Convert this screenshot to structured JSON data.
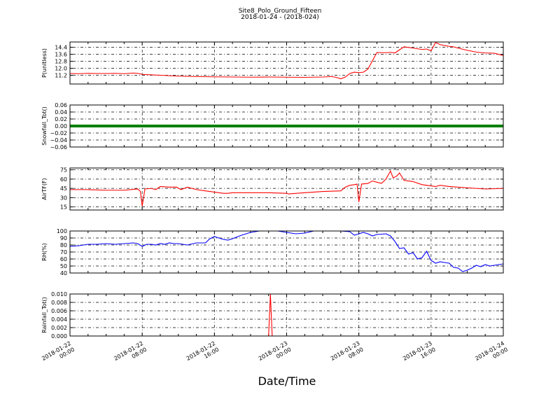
{
  "title_line1": "Site8_Polo_Ground_Fifteen",
  "title_line2": "2018-01-24 - (2018-024)",
  "xlabel": "Date/Time",
  "x_tick_labels": [
    [
      "2018-01-22",
      "00:00"
    ],
    [
      "2018-01-22",
      "08:00"
    ],
    [
      "2018-01-22",
      "16:00"
    ],
    [
      "2018-01-23",
      "00:00"
    ],
    [
      "2018-01-23",
      "08:00"
    ],
    [
      "2018-01-23",
      "16:00"
    ],
    [
      "2018-01-24",
      "00:00"
    ]
  ],
  "chart_data": [
    {
      "type": "line",
      "ylabel": "P(unitless)",
      "ylim": [
        10.2,
        15.0
      ],
      "yticks": [
        "11.2",
        "12.0",
        "12.8",
        "13.6",
        "14.4"
      ],
      "grid": true,
      "x_unit": "hours since 2018-01-22 00:00",
      "xlim": [
        0,
        48
      ],
      "series": [
        {
          "color": "#ff0000",
          "x": [
            0,
            1,
            2,
            3,
            4,
            5,
            6,
            7,
            7.5,
            8,
            9,
            10,
            12,
            14,
            16,
            18,
            20,
            22,
            24,
            26,
            28,
            29,
            29.5,
            30,
            30.5,
            31,
            31.5,
            32,
            32.5,
            33,
            34,
            35,
            35.5,
            36,
            37,
            38,
            39,
            39.5,
            40,
            40.5,
            41,
            42,
            42.5,
            43,
            44,
            45,
            46,
            47,
            48
          ],
          "y": [
            11.4,
            11.38,
            11.42,
            11.4,
            11.4,
            11.42,
            11.38,
            11.45,
            11.42,
            11.3,
            11.25,
            11.2,
            11.1,
            11.05,
            11.02,
            11.0,
            10.98,
            11.0,
            10.98,
            10.96,
            11.0,
            11.05,
            10.95,
            10.8,
            11.0,
            11.4,
            11.55,
            11.5,
            11.55,
            11.9,
            13.8,
            13.78,
            13.82,
            13.75,
            14.45,
            14.3,
            14.15,
            14.2,
            14.0,
            14.95,
            14.7,
            14.5,
            14.45,
            14.3,
            14.05,
            13.85,
            13.75,
            13.72,
            13.45
          ]
        }
      ]
    },
    {
      "type": "line",
      "ylabel": "Snowfall_Tot()",
      "ylim": [
        -0.06,
        0.06
      ],
      "yticks": [
        "−0.06",
        "−0.04",
        "−0.02",
        "0.00",
        "0.02",
        "0.04",
        "0.06"
      ],
      "grid": true,
      "x_unit": "hours since 2018-01-22 00:00",
      "xlim": [
        0,
        48
      ],
      "series": [
        {
          "color": "#008000",
          "x": [
            0,
            48
          ],
          "y": [
            0,
            0
          ]
        }
      ]
    },
    {
      "type": "line",
      "ylabel": "AirTF(F)",
      "ylim": [
        10,
        78
      ],
      "yticks": [
        "15",
        "30",
        "45",
        "60",
        "75"
      ],
      "grid": true,
      "x_unit": "hours since 2018-01-22 00:00",
      "xlim": [
        0,
        48
      ],
      "series": [
        {
          "color": "#ff0000",
          "x": [
            0,
            2,
            4,
            6,
            7.5,
            7.8,
            8.0,
            8.3,
            9,
            9.5,
            10,
            11,
            11.8,
            12.3,
            13,
            14,
            15,
            16,
            17,
            17.5,
            18,
            20,
            22,
            24,
            24.2,
            26,
            28,
            30,
            30.5,
            31,
            31.5,
            31.8,
            32.0,
            32.3,
            33,
            33.5,
            34,
            34.5,
            35,
            35.5,
            35.8,
            36.2,
            36.5,
            37,
            38,
            39,
            40,
            40.5,
            41,
            42,
            44,
            46,
            48
          ],
          "y": [
            43,
            43,
            42,
            42,
            44,
            40,
            16,
            44,
            45,
            43,
            48,
            47,
            47,
            43,
            47,
            43,
            41,
            39,
            37,
            37,
            38,
            38,
            38,
            37,
            36,
            38,
            40,
            41,
            47,
            50,
            51,
            52,
            23,
            52,
            53,
            57,
            55,
            53,
            60,
            73,
            62,
            65,
            70,
            58,
            56,
            51,
            49,
            48,
            50,
            48,
            46,
            44,
            45
          ]
        }
      ]
    },
    {
      "type": "line",
      "ylabel": "RH(%)",
      "ylim": [
        40,
        100
      ],
      "yticks": [
        "40",
        "50",
        "60",
        "70",
        "80",
        "90",
        "100"
      ],
      "grid": true,
      "x_unit": "hours since 2018-01-22 00:00",
      "xlim": [
        0,
        48
      ],
      "series": [
        {
          "color": "#0000ff",
          "x": [
            0,
            1,
            2,
            3,
            4,
            5,
            6,
            7,
            7.5,
            8,
            8.5,
            9,
            9.5,
            10,
            10.5,
            11,
            11.5,
            12,
            12.5,
            13,
            14,
            15,
            15.5,
            16,
            16.5,
            17,
            17.5,
            18,
            19,
            20,
            21,
            22,
            23,
            24,
            25,
            26,
            27,
            28,
            29,
            30,
            31,
            31.5,
            32,
            32.5,
            33,
            33.5,
            34,
            35,
            35.5,
            36,
            36.5,
            37,
            37.5,
            38,
            38.5,
            39,
            39.5,
            40,
            40.5,
            41,
            41.5,
            42,
            42.5,
            43,
            43.5,
            44,
            44.5,
            45,
            45.5,
            46,
            46.5,
            47,
            47.5,
            48
          ],
          "y": [
            78,
            79,
            81,
            81,
            82,
            81,
            82,
            83,
            82,
            78,
            81,
            81,
            80,
            82,
            81,
            83,
            82,
            82,
            81,
            80,
            83,
            83,
            89,
            92,
            90,
            88,
            87,
            89,
            94,
            98,
            100,
            100,
            100,
            98,
            96,
            97,
            100,
            100,
            100,
            100,
            99,
            94,
            96,
            98,
            96,
            93,
            95,
            96,
            93,
            85,
            75,
            76,
            67,
            69,
            60,
            62,
            71,
            58,
            54,
            56,
            55,
            54,
            48,
            47,
            42,
            44,
            47,
            51,
            49,
            52,
            50,
            51,
            52,
            53
          ]
        }
      ]
    },
    {
      "type": "line",
      "ylabel": "Rainfall_Tot()",
      "ylim": [
        0,
        0.01
      ],
      "yticks": [
        "0.000",
        "0.002",
        "0.004",
        "0.006",
        "0.008",
        "0.010"
      ],
      "grid": true,
      "x_unit": "hours since 2018-01-22 00:00",
      "xlim": [
        0,
        48
      ],
      "series": [
        {
          "color": "#ff0000",
          "x": [
            0,
            22,
            22.2,
            22.4,
            48
          ],
          "y": [
            0,
            0,
            0.01,
            0,
            0
          ]
        }
      ]
    }
  ]
}
